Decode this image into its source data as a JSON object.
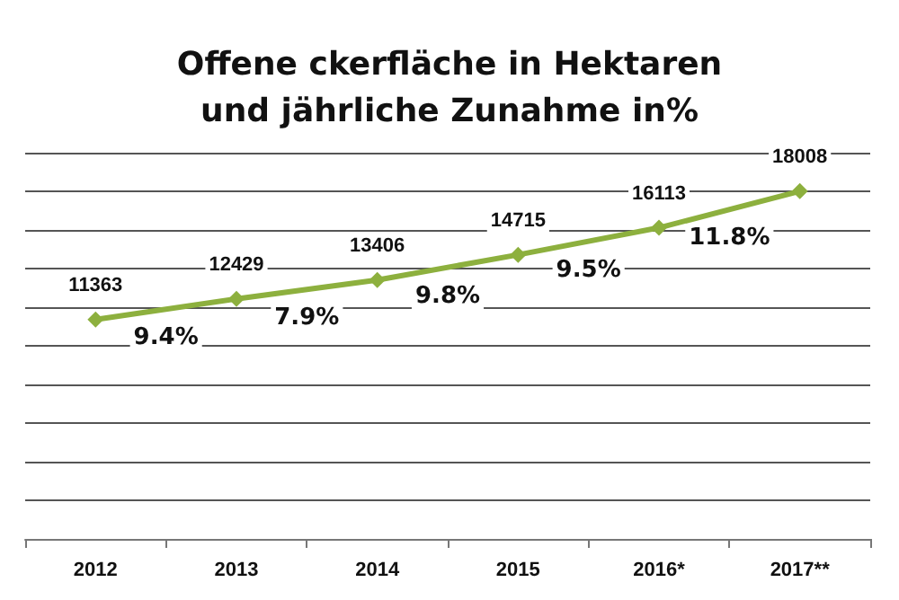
{
  "chart_data": {
    "type": "line",
    "title": "Offene ckerfläche in Hektaren\nund jährliche Zunahme in%",
    "categories": [
      "2012",
      "2013",
      "2014",
      "2015",
      "2016*",
      "2017**"
    ],
    "series": [
      {
        "color": "#8db03e",
        "values": [
          11363,
          12429,
          13406,
          14715,
          16113,
          18008
        ]
      }
    ],
    "data_labels": true,
    "marker": "diamond",
    "line_style": "solid",
    "grid": "y",
    "tick_labels": "x",
    "ylim": [
      0,
      20000
    ],
    "yticks": [
      {
        "value": 0,
        "label": null
      },
      {
        "value": 2000,
        "label": null
      },
      {
        "value": 4000,
        "label": null
      },
      {
        "value": 6000,
        "label": null
      },
      {
        "value": 8000,
        "label": null
      },
      {
        "value": 10000,
        "label": null
      },
      {
        "value": 12000,
        "label": null
      },
      {
        "value": 14000,
        "label": null
      },
      {
        "value": 16000,
        "label": null
      },
      {
        "value": 18000,
        "label": null
      },
      {
        "value": 20000,
        "label": null
      }
    ],
    "annotations": [
      "9.4%",
      "7.9%",
      "9.8%",
      "9.5%",
      "11.8%"
    ]
  }
}
